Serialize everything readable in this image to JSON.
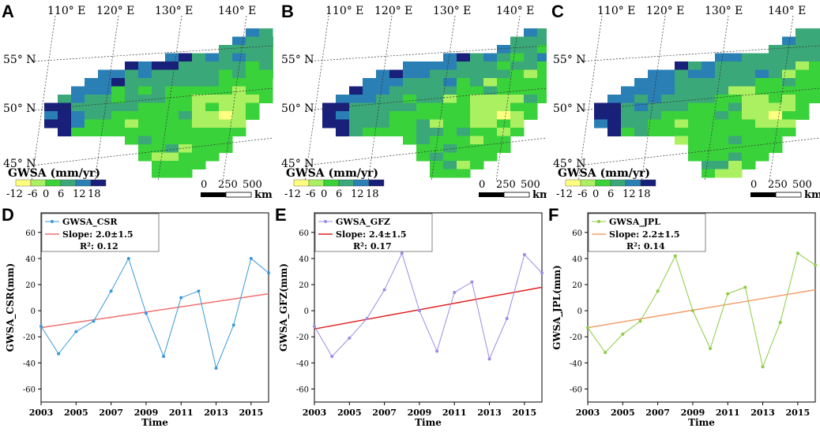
{
  "maps": [
    {
      "letter": "A",
      "lon_labels": [
        "110° E",
        "120° E",
        "130° E",
        "140° E"
      ],
      "lat_labels": [
        "55° N",
        "50° N",
        "45° N"
      ],
      "legend_title": "GWSA (mm/yr)",
      "legend_ticks": [
        "-12",
        "-6",
        "0",
        "6",
        "12",
        "18"
      ],
      "legend_colors": [
        "#ffff80",
        "#aaf060",
        "#3ad23a",
        "#3aa878",
        "#2a7fb4",
        "#18207a"
      ],
      "scale_ticks": [
        "0",
        "250",
        "500"
      ],
      "scale_unit": "km"
    },
    {
      "letter": "B",
      "lon_labels": [
        "110° E",
        "120° E",
        "130° E",
        "140° E"
      ],
      "lat_labels": [
        "55° N",
        "50° N",
        "45° N"
      ],
      "legend_title": "GWSA (mm/yr)",
      "legend_ticks": [
        "-12",
        "-6",
        "0",
        "6",
        "12",
        "18"
      ],
      "legend_colors": [
        "#ffff80",
        "#aaf060",
        "#3ad23a",
        "#3aa878",
        "#2a7fb4",
        "#18207a"
      ],
      "scale_ticks": [
        "0",
        "250",
        "500"
      ],
      "scale_unit": "km"
    },
    {
      "letter": "C",
      "lon_labels": [
        "110° E",
        "120° E",
        "130° E",
        "140° E"
      ],
      "lat_labels": [
        "55° N",
        "50° N",
        "45° N"
      ],
      "legend_title": "GWSA (mm/yr)",
      "legend_ticks": [
        "-12",
        "-6",
        "0",
        "6",
        "12",
        "18"
      ],
      "legend_colors": [
        "#ffff80",
        "#aaf060",
        "#3ad23a",
        "#3aa878",
        "#2a7fb4",
        "#18207a"
      ],
      "scale_ticks": [
        "0",
        "250",
        "500"
      ],
      "scale_unit": "km"
    }
  ],
  "chart_data": [
    {
      "letter": "D",
      "type": "line",
      "title": "",
      "xlabel": "Time",
      "ylabel": "GWSA_CSR(mm)",
      "xlim": [
        2003,
        2016
      ],
      "ylim": [
        -70,
        75
      ],
      "xticks": [
        2003,
        2005,
        2007,
        2009,
        2011,
        2013,
        2015
      ],
      "yticks": [
        -60,
        -40,
        -20,
        0,
        20,
        40,
        60
      ],
      "series": [
        {
          "name": "GWSA_CSR",
          "color": "#3a9ad9",
          "x": [
            2003,
            2004,
            2005,
            2006,
            2007,
            2008,
            2009,
            2010,
            2011,
            2012,
            2013,
            2014,
            2015,
            2016
          ],
          "values": [
            -12,
            -33,
            -16,
            -8,
            15,
            40,
            -2,
            -35,
            10,
            15,
            -44,
            -11,
            40,
            29
          ]
        }
      ],
      "trend": {
        "name": "Slope",
        "color": "#f07070",
        "start": -13,
        "end": 13
      },
      "legend": {
        "series_label": "GWSA_CSR",
        "slope_label": "Slope: 2.0±1.5",
        "r2_label": "R²: 0.12"
      }
    },
    {
      "letter": "E",
      "type": "line",
      "title": "",
      "xlabel": "Time",
      "ylabel": "GWSA_GFZ(mm)",
      "xlim": [
        2003,
        2016
      ],
      "ylim": [
        -70,
        75
      ],
      "xticks": [
        2003,
        2005,
        2007,
        2009,
        2011,
        2013,
        2015
      ],
      "yticks": [
        -60,
        -40,
        -20,
        0,
        20,
        40,
        60
      ],
      "series": [
        {
          "name": "GWSA_GFZ",
          "color": "#9a8ce6",
          "x": [
            2003,
            2004,
            2005,
            2006,
            2007,
            2008,
            2009,
            2010,
            2011,
            2012,
            2013,
            2014,
            2015,
            2016
          ],
          "values": [
            -12,
            -35,
            -21,
            -6,
            16,
            44,
            0,
            -31,
            14,
            22,
            -37,
            -6,
            43,
            29
          ]
        }
      ],
      "trend": {
        "name": "Slope",
        "color": "#e02020",
        "start": -14,
        "end": 18
      },
      "legend": {
        "series_label": "GWSA_GFZ",
        "slope_label": "Slope: 2.4±1.5",
        "r2_label": "R²: 0.17"
      }
    },
    {
      "letter": "F",
      "type": "line",
      "title": "",
      "xlabel": "Time",
      "ylabel": "GWSA_JPL(mm)",
      "xlim": [
        2003,
        2016
      ],
      "ylim": [
        -70,
        75
      ],
      "xticks": [
        2003,
        2005,
        2007,
        2009,
        2011,
        2013,
        2015
      ],
      "yticks": [
        -60,
        -40,
        -20,
        0,
        20,
        40,
        60
      ],
      "series": [
        {
          "name": "GWSA_JPL",
          "color": "#8ccc44",
          "x": [
            2003,
            2004,
            2005,
            2006,
            2007,
            2008,
            2009,
            2010,
            2011,
            2012,
            2013,
            2014,
            2015,
            2016
          ],
          "values": [
            -13,
            -32,
            -18,
            -8,
            15,
            42,
            0,
            -29,
            13,
            18,
            -43,
            -9,
            44,
            35
          ]
        }
      ],
      "trend": {
        "name": "Slope",
        "color": "#f5a070",
        "start": -13,
        "end": 16
      },
      "legend": {
        "series_label": "GWSA_JPL",
        "slope_label": "Slope: 2.2±1.5",
        "r2_label": "R²: 0.14"
      }
    }
  ]
}
